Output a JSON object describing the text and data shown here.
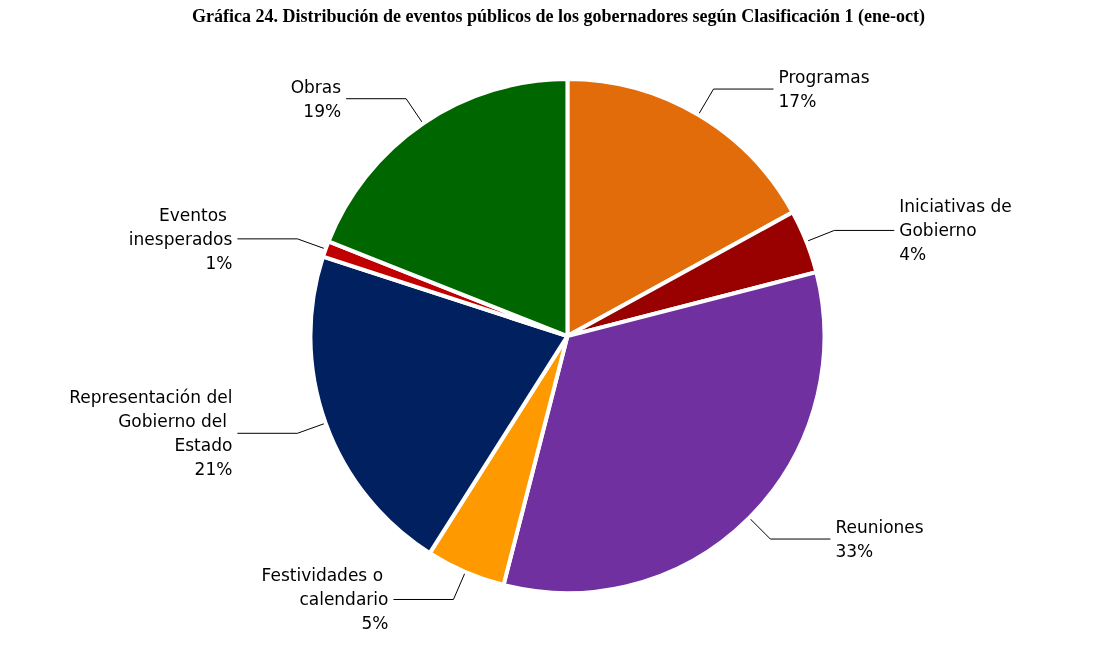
{
  "chart_data": {
    "type": "pie",
    "title": "Gráfica 24. Distribución de eventos públicos de los gobernadores según Clasificación 1 (ene-oct)",
    "categories": [
      "Programas",
      "Iniciativas de Gobierno",
      "Reuniones",
      "Festividades o calendario",
      "Representación del Gobierno del Estado",
      "Eventos inesperados",
      "Obras"
    ],
    "values": [
      17,
      4,
      33,
      5,
      21,
      1,
      19
    ],
    "value_labels": [
      "17%",
      "4%",
      "33%",
      "5%",
      "21%",
      "1%",
      "19%"
    ],
    "colors": [
      "#e36c0a",
      "#990000",
      "#7030a0",
      "#ff9900",
      "#002060",
      "#c00000",
      "#006600"
    ],
    "legend": false
  }
}
